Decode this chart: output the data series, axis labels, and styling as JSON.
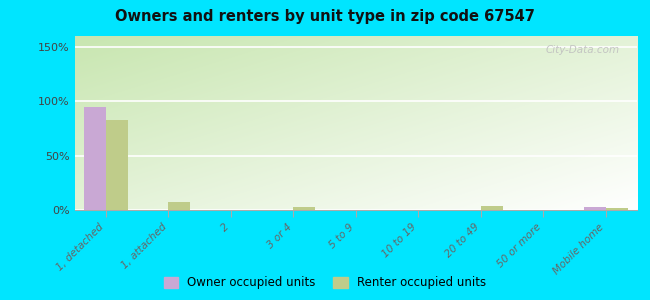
{
  "title": "Owners and renters by unit type in zip code 67547",
  "categories": [
    "1, detached",
    "1, attached",
    "2",
    "3 or 4",
    "5 to 9",
    "10 to 19",
    "20 to 49",
    "50 or more",
    "Mobile home"
  ],
  "owner_values": [
    95,
    0,
    0,
    0,
    0,
    0,
    0,
    0,
    3
  ],
  "renter_values": [
    83,
    7,
    0,
    3,
    0,
    0,
    4,
    0,
    2
  ],
  "owner_color": "#c9a8d4",
  "renter_color": "#bfcc8a",
  "bg_top_left": "#c8e6b0",
  "bg_bottom_right": "#f0f8f0",
  "outer_bg": "#00e5ff",
  "yticks": [
    0,
    50,
    100,
    150
  ],
  "ylim": [
    0,
    160
  ],
  "bar_width": 0.35,
  "watermark": "City-Data.com"
}
